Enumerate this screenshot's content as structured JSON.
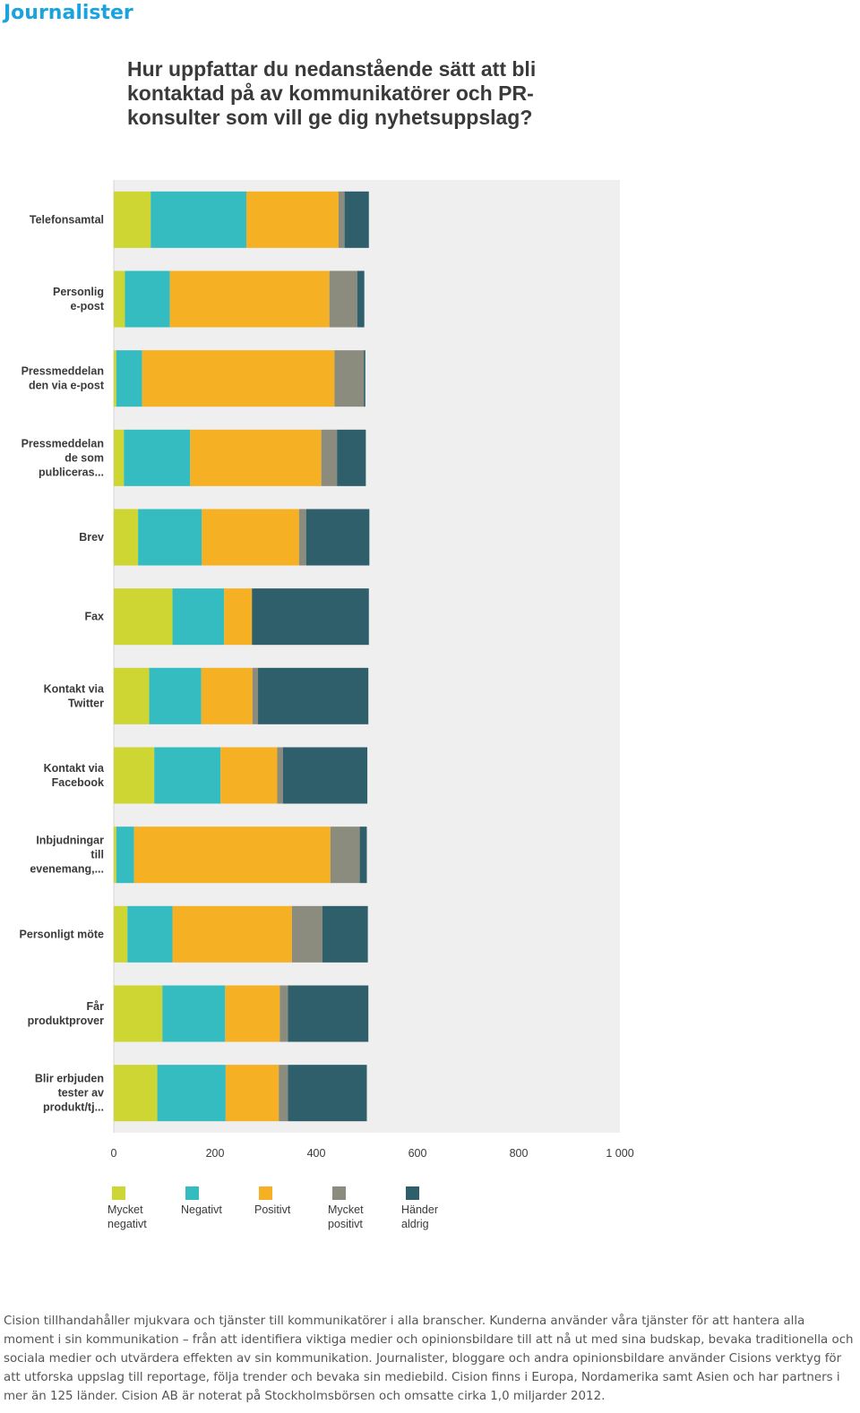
{
  "page": {
    "heading": "Journalister",
    "footer": "Cision tillhandahåller mjukvara och tjänster till kommunikatörer i alla branscher. Kunderna använder våra tjänster för att hantera alla moment i sin kommunikation – från att identifiera viktiga medier och opinionsbildare till att nå ut med sina budskap, bevaka traditionella och sociala medier och utvärdera effekten av sin kommunikation. Journalister, bloggare och andra opinionsbildare använder Cisions verktyg för att utforska uppslag till reportage, följa trender och bevaka sin mediebild. Cision finns i Europa, Nordamerika samt Asien och har partners i mer än 125 länder. Cision AB är noterat på Stockholmsbörsen och omsatte cirka 1,0 miljarder 2012."
  },
  "chart_data": {
    "type": "bar",
    "orientation": "horizontal",
    "stacked": true,
    "title": "Hur uppfattar du nedanstående sätt att bli kontaktad på av kommunikatörer och PR-konsulter som vill ge dig nyhetsuppslag?",
    "categories": [
      "Telefonsamtal",
      "Personlig e-post",
      "Pressmeddelan den via e-post",
      "Pressmeddelan de som publiceras...",
      "Brev",
      "Fax",
      "Kontakt via Twitter",
      "Kontakt via Facebook",
      "Inbjudningar till evenemang,...",
      "Personligt möte",
      "Får produktprover",
      "Blir erbjuden tester av produkt/tj..."
    ],
    "series": [
      {
        "name": "Mycket negativt",
        "color": "#cdd632",
        "values": [
          73,
          22,
          5,
          20,
          48,
          116,
          70,
          80,
          5,
          27,
          96,
          86
        ]
      },
      {
        "name": "Negativt",
        "color": "#35bcc1",
        "values": [
          189,
          89,
          51,
          131,
          126,
          102,
          103,
          131,
          35,
          89,
          124,
          135
        ]
      },
      {
        "name": "Positivt",
        "color": "#f5b023",
        "values": [
          182,
          315,
          380,
          259,
          192,
          55,
          101,
          112,
          388,
          236,
          108,
          105
        ]
      },
      {
        "name": "Mycket positivt",
        "color": "#8b8c7e",
        "values": [
          12,
          55,
          58,
          31,
          14,
          0,
          11,
          11,
          58,
          60,
          16,
          18
        ]
      },
      {
        "name": "Händer aldrig",
        "color": "#2f5f6b",
        "values": [
          48,
          14,
          3,
          57,
          125,
          231,
          218,
          167,
          14,
          90,
          159,
          156
        ]
      }
    ],
    "xlim": [
      0,
      1000
    ],
    "x_ticks": [
      "0",
      "200",
      "400",
      "600",
      "800",
      "1 000"
    ],
    "x_tick_values": [
      0,
      200,
      400,
      600,
      800,
      1000
    ],
    "legend_position": "bottom",
    "grid": false,
    "plot_background": "#efefef"
  }
}
